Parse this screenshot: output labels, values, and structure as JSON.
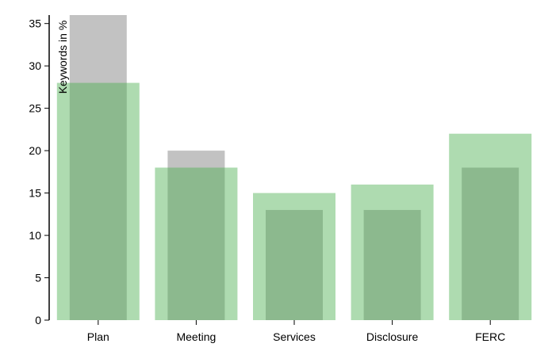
{
  "chart_data": {
    "type": "bar",
    "categories": [
      "Plan",
      "Meeting",
      "Services",
      "Disclosure",
      "FERC"
    ],
    "series": [
      {
        "values": [
          36,
          20,
          13,
          13,
          18
        ],
        "color": "#999999",
        "opacity": 0.6
      },
      {
        "values": [
          28,
          18,
          15,
          16,
          22
        ],
        "color": "#4caf50",
        "opacity": 0.45
      }
    ],
    "ylabel": "Keywords in %",
    "xlabel": "",
    "title": "",
    "ylim": [
      0,
      36
    ],
    "yticks": [
      0,
      5,
      10,
      15,
      20,
      25,
      30,
      35
    ],
    "grid": false,
    "legend": "none"
  }
}
